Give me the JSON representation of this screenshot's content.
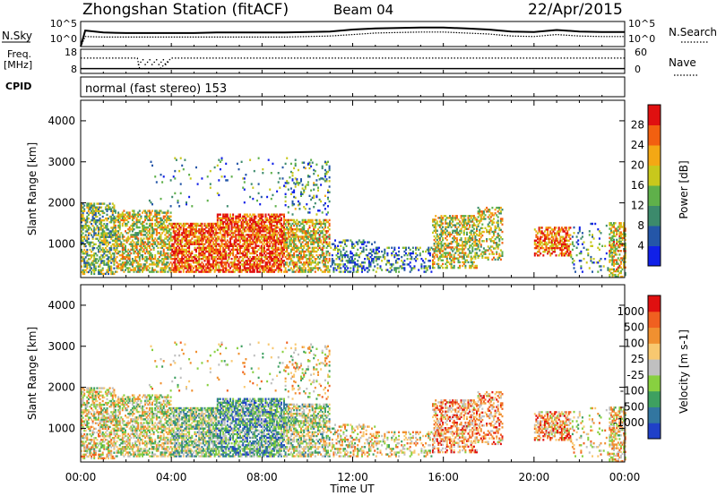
{
  "header": {
    "station": "Zhongshan Station (fitACF)",
    "beam": "Beam 04",
    "date": "22/Apr/2015"
  },
  "side_labels": {
    "nsky": "N.Sky",
    "nsearch": "N.Search",
    "freq_line1": "Freq.",
    "freq_line2": "[MHz]",
    "nave": "Nave",
    "cpid": "CPID"
  },
  "cpid_text": "normal (fast stereo) 153",
  "chart_data": [
    {
      "type": "line",
      "name": "noise",
      "ticks_left": [
        "10^5",
        "10^0"
      ],
      "ticks_right": [
        "10^5",
        "10^0"
      ],
      "series": [
        {
          "label": "N.Sky",
          "style": "solid",
          "x": [
            0,
            0.2,
            1,
            2,
            3,
            4,
            5,
            6,
            7,
            8,
            9,
            10,
            11,
            12,
            13,
            14,
            15,
            16,
            17,
            18,
            19,
            20,
            21,
            22,
            23,
            24
          ],
          "y": [
            0,
            3.2,
            2.8,
            2.7,
            2.7,
            2.7,
            2.7,
            2.8,
            2.8,
            2.8,
            2.8,
            2.9,
            3.0,
            3.4,
            3.6,
            3.7,
            3.8,
            3.8,
            3.6,
            3.4,
            3.0,
            2.9,
            3.3,
            3.0,
            2.9,
            2.9
          ]
        },
        {
          "label": "N.Search",
          "style": "dotted",
          "x": [
            0,
            0.2,
            1,
            2,
            3,
            4,
            5,
            6,
            7,
            8,
            9,
            10,
            11,
            12,
            13,
            14,
            15,
            16,
            17,
            18,
            19,
            20,
            21,
            22,
            23,
            24
          ],
          "y": [
            0,
            2.0,
            1.9,
            1.9,
            1.9,
            1.9,
            1.9,
            1.9,
            1.9,
            1.9,
            1.9,
            2.0,
            2.1,
            2.4,
            2.7,
            2.8,
            2.9,
            2.9,
            2.7,
            2.5,
            2.1,
            2.0,
            2.4,
            2.1,
            2.0,
            2.0
          ]
        }
      ]
    },
    {
      "type": "line",
      "name": "frequency",
      "ticks_left": [
        "18",
        "8"
      ],
      "ticks_right": [
        "60",
        "0"
      ],
      "series": [
        {
          "label": "Freq",
          "style": "solid",
          "x": [
            0,
            24
          ],
          "y": [
            10,
            10
          ]
        },
        {
          "label": "Nave",
          "style": "dotted",
          "x": [
            0,
            2.5,
            2.6,
            3.5,
            4.0,
            4.1,
            24
          ],
          "y": [
            38,
            38,
            12,
            12,
            38,
            38,
            38
          ]
        }
      ]
    },
    {
      "type": "heatmap",
      "name": "power",
      "ylabel": "Slant Range [km]",
      "yticks": [
        "1000",
        "2000",
        "3000",
        "4000"
      ],
      "colorbar_label": "Power [dB]",
      "colorbar_ticks": [
        "4",
        "8",
        "12",
        "16",
        "20",
        "24",
        "28"
      ],
      "colorbar_colors": [
        "#1020e8",
        "#2456a8",
        "#3c8a6c",
        "#5fb04a",
        "#c8c81c",
        "#f4a814",
        "#f26010",
        "#e01010"
      ]
    },
    {
      "type": "heatmap",
      "name": "velocity",
      "ylabel": "Slant Range [km]",
      "yticks": [
        "1000",
        "2000",
        "3000",
        "4000"
      ],
      "colorbar_label": "Velocity [m s-1]",
      "colorbar_ticks": [
        "1000",
        "500",
        "100",
        "25",
        "-25",
        "-100",
        "-500",
        "-1000"
      ],
      "colorbar_colors": [
        "#2040c8",
        "#3276a0",
        "#3ea060",
        "#88d040",
        "#c0c0c0",
        "#f8c870",
        "#f09030",
        "#f06020",
        "#e01010"
      ]
    }
  ],
  "time_axis": {
    "ticks": [
      "00:00",
      "04:00",
      "08:00",
      "12:00",
      "16:00",
      "20:00",
      "00:00"
    ],
    "label": "Time UT"
  }
}
